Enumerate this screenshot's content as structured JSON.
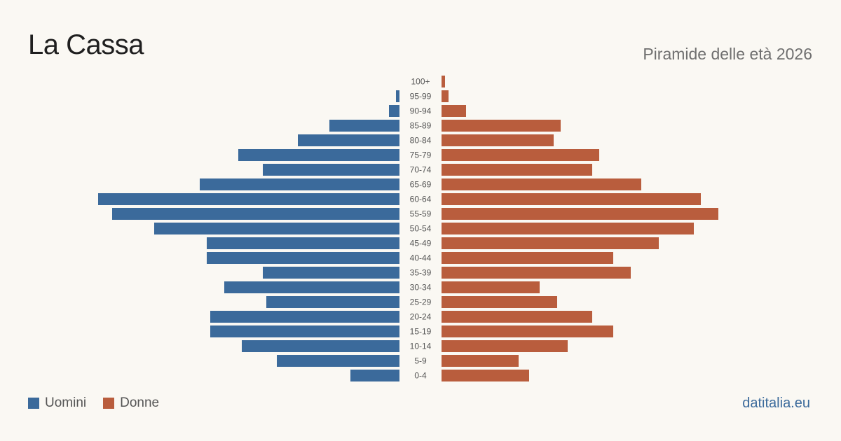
{
  "header": {
    "title": "La Cassa",
    "subtitle": "Piramide delle età 2026"
  },
  "legend": {
    "men_label": "Uomini",
    "women_label": "Donne"
  },
  "source": "datitalia.eu",
  "colors": {
    "men": "#3b6a9b",
    "women": "#b95d3d",
    "background": "#faf8f3"
  },
  "chart_data": {
    "type": "bar",
    "orientation": "horizontal-population-pyramid",
    "categories": [
      "100+",
      "95-99",
      "90-94",
      "85-89",
      "80-84",
      "75-79",
      "70-74",
      "65-69",
      "60-64",
      "55-59",
      "50-54",
      "45-49",
      "40-44",
      "35-39",
      "30-34",
      "25-29",
      "20-24",
      "15-19",
      "10-14",
      "5-9",
      "0-4"
    ],
    "series": [
      {
        "name": "Uomini",
        "values": [
          0,
          1,
          3,
          20,
          29,
          46,
          39,
          57,
          86,
          82,
          70,
          55,
          55,
          39,
          50,
          38,
          54,
          54,
          45,
          35,
          14
        ]
      },
      {
        "name": "Donne",
        "values": [
          1,
          2,
          7,
          34,
          32,
          45,
          43,
          57,
          74,
          79,
          72,
          62,
          49,
          54,
          28,
          33,
          43,
          49,
          36,
          22,
          25
        ]
      }
    ],
    "grid": false,
    "legend_position": "bottom-left"
  }
}
